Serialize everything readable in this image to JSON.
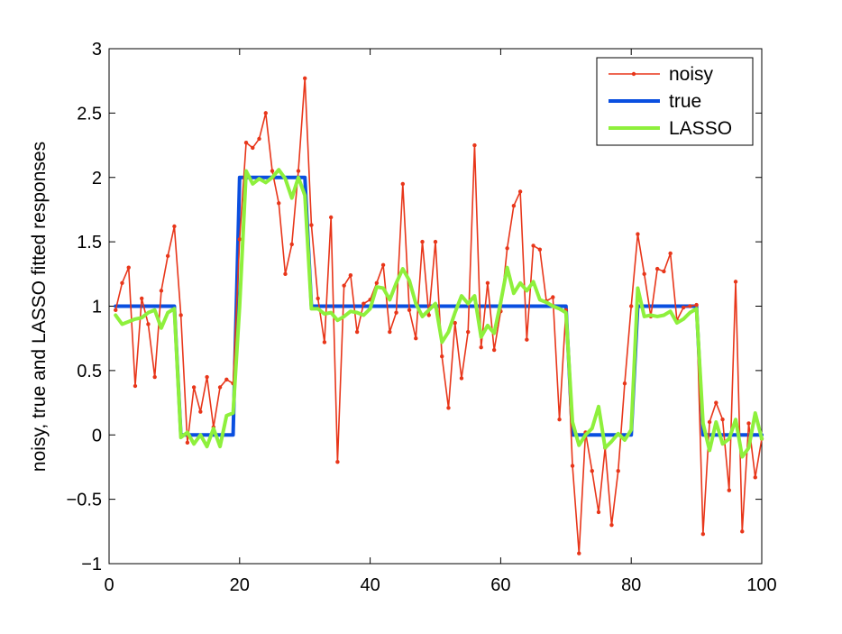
{
  "chart_data": {
    "type": "line",
    "title": "",
    "xlabel": "",
    "ylabel": "noisy, true and LASSO fitted responses",
    "xlim": [
      0,
      100
    ],
    "ylim": [
      -1,
      3
    ],
    "xticks": [
      0,
      20,
      40,
      60,
      80,
      100
    ],
    "xtick_labels": [
      "0",
      "20",
      "40",
      "60",
      "80",
      "100"
    ],
    "yticks": [
      -1,
      -0.5,
      0,
      0.5,
      1,
      1.5,
      2,
      2.5,
      3
    ],
    "ytick_labels": [
      "−1",
      "−0.5",
      "0",
      "0.5",
      "1",
      "1.5",
      "2",
      "2.5",
      "3"
    ],
    "grid": false,
    "legend": "top-right",
    "series": [
      {
        "name": "noisy",
        "color": "#e8361a",
        "marker": "dot",
        "x": [
          1,
          2,
          3,
          4,
          5,
          6,
          7,
          8,
          9,
          10,
          11,
          12,
          13,
          14,
          15,
          16,
          17,
          18,
          19,
          20,
          21,
          22,
          23,
          24,
          25,
          26,
          27,
          28,
          29,
          30,
          31,
          32,
          33,
          34,
          35,
          36,
          37,
          38,
          39,
          40,
          41,
          42,
          43,
          44,
          45,
          46,
          47,
          48,
          49,
          50,
          51,
          52,
          53,
          54,
          55,
          56,
          57,
          58,
          59,
          60,
          61,
          62,
          63,
          64,
          65,
          66,
          67,
          68,
          69,
          70,
          71,
          72,
          73,
          74,
          75,
          76,
          77,
          78,
          79,
          80,
          81,
          82,
          83,
          84,
          85,
          86,
          87,
          88,
          89,
          90,
          91,
          92,
          93,
          94,
          95,
          96,
          97,
          98,
          99,
          100
        ],
        "y": [
          0.97,
          1.18,
          1.3,
          0.38,
          1.06,
          0.86,
          0.45,
          1.12,
          1.39,
          1.62,
          0.93,
          -0.06,
          0.37,
          0.18,
          0.45,
          0.06,
          0.37,
          0.43,
          0.4,
          1.52,
          2.27,
          2.23,
          2.3,
          2.5,
          2.05,
          1.8,
          1.25,
          1.48,
          2.05,
          2.77,
          1.63,
          1.06,
          0.72,
          1.69,
          -0.21,
          1.16,
          1.24,
          0.8,
          1.02,
          1.05,
          1.18,
          1.32,
          0.8,
          0.95,
          1.95,
          0.97,
          0.75,
          1.5,
          0.93,
          1.5,
          0.61,
          0.21,
          0.87,
          0.44,
          0.8,
          2.25,
          0.68,
          1.18,
          0.66,
          0.96,
          1.45,
          1.78,
          1.89,
          0.74,
          1.47,
          1.44,
          1.04,
          1.07,
          0.12,
          0.97,
          -0.24,
          -0.92,
          0.02,
          -0.28,
          -0.6,
          -0.1,
          -0.7,
          -0.28,
          0.4,
          1.0,
          1.56,
          1.25,
          0.92,
          1.29,
          1.27,
          1.41,
          0.89,
          0.99,
          1.0,
          1.01,
          -0.77,
          0.1,
          0.25,
          0.12,
          -0.43,
          1.19,
          -0.75,
          0.09,
          -0.33,
          -0.03
        ]
      },
      {
        "name": "true",
        "color": "#0a4fe0",
        "step": true,
        "x": [
          1,
          10,
          11,
          19,
          20,
          30,
          31,
          70,
          71,
          80,
          81,
          90,
          91,
          100
        ],
        "y": [
          1,
          1,
          0,
          0,
          2,
          2,
          1,
          1,
          0,
          0,
          1,
          1,
          0,
          0
        ]
      },
      {
        "name": "LASSO",
        "color": "#8ef03c",
        "x": [
          1,
          2,
          3,
          4,
          5,
          6,
          7,
          8,
          9,
          10,
          11,
          12,
          13,
          14,
          15,
          16,
          17,
          18,
          19,
          20,
          21,
          22,
          23,
          24,
          25,
          26,
          27,
          28,
          29,
          30,
          31,
          32,
          33,
          34,
          35,
          36,
          37,
          38,
          39,
          40,
          41,
          42,
          43,
          44,
          45,
          46,
          47,
          48,
          49,
          50,
          51,
          52,
          53,
          54,
          55,
          56,
          57,
          58,
          59,
          60,
          61,
          62,
          63,
          64,
          65,
          66,
          67,
          68,
          69,
          70,
          71,
          72,
          73,
          74,
          75,
          76,
          77,
          78,
          79,
          80,
          81,
          82,
          83,
          84,
          85,
          86,
          87,
          88,
          89,
          90,
          91,
          92,
          93,
          94,
          95,
          96,
          97,
          98,
          99,
          100
        ],
        "y": [
          0.93,
          0.86,
          0.88,
          0.9,
          0.91,
          0.95,
          0.97,
          0.83,
          0.95,
          0.98,
          -0.02,
          0.02,
          -0.07,
          0.0,
          -0.09,
          0.05,
          -0.09,
          0.15,
          0.17,
          1.0,
          2.05,
          1.95,
          1.99,
          1.96,
          2.0,
          2.06,
          1.99,
          1.84,
          2.0,
          1.86,
          0.98,
          0.98,
          0.94,
          0.95,
          0.89,
          0.92,
          0.96,
          0.95,
          0.93,
          0.98,
          1.15,
          1.14,
          1.05,
          1.18,
          1.29,
          1.2,
          1.02,
          0.92,
          0.97,
          1.02,
          0.72,
          0.8,
          0.95,
          1.08,
          1.02,
          1.08,
          0.76,
          0.85,
          0.79,
          1.03,
          1.3,
          1.1,
          1.18,
          1.12,
          1.19,
          1.05,
          1.03,
          1.0,
          0.98,
          0.95,
          0.1,
          -0.08,
          0.0,
          0.05,
          0.22,
          -0.1,
          -0.05,
          0.01,
          -0.04,
          0.04,
          1.14,
          0.92,
          0.93,
          0.92,
          0.93,
          0.96,
          0.87,
          0.9,
          0.95,
          0.98,
          0.09,
          -0.12,
          0.1,
          -0.07,
          -0.03,
          0.12,
          -0.17,
          -0.1,
          0.17,
          -0.03
        ]
      }
    ]
  }
}
